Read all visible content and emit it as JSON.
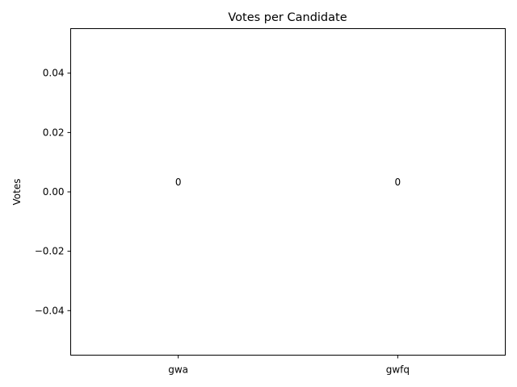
{
  "chart_data": {
    "type": "bar",
    "title": "Votes per Candidate",
    "xlabel": "",
    "ylabel": "Votes",
    "categories": [
      "gwa",
      "gwfq"
    ],
    "values": [
      0,
      0
    ],
    "data_labels": [
      "0",
      "0"
    ],
    "ylim": [
      -0.055,
      0.055
    ],
    "yticks": [
      -0.04,
      -0.02,
      0.0,
      0.02,
      0.04
    ],
    "ytick_labels": [
      "−0.04",
      "−0.02",
      "0.00",
      "0.02",
      "0.04"
    ],
    "grid": false,
    "legend": "none",
    "colors": {
      "bar": "#1f77b4",
      "axis": "#000000",
      "background": "#ffffff"
    }
  }
}
